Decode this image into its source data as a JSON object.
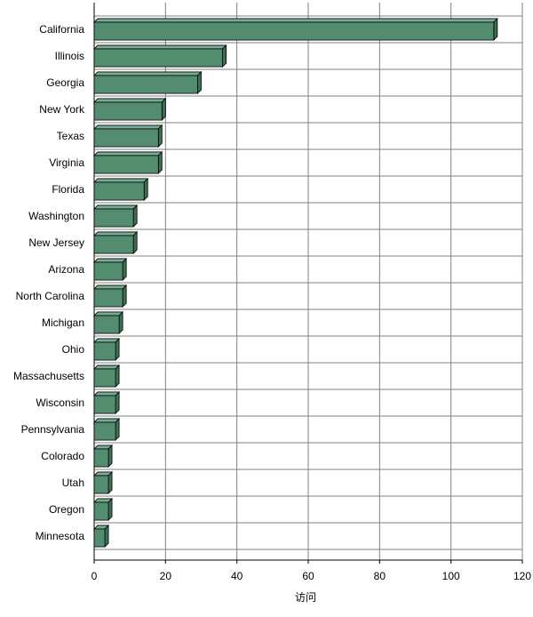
{
  "chart_data": {
    "type": "bar",
    "orientation": "horizontal",
    "style": "3d",
    "categories": [
      "California",
      "Illinois",
      "Georgia",
      "New York",
      "Texas",
      "Virginia",
      "Florida",
      "Washington",
      "New Jersey",
      "Arizona",
      "North Carolina",
      "Michigan",
      "Ohio",
      "Massachusetts",
      "Wisconsin",
      "Pennsylvania",
      "Colorado",
      "Utah",
      "Oregon",
      "Minnesota"
    ],
    "values": [
      112,
      36,
      29,
      19,
      18,
      18,
      14,
      11,
      11,
      8,
      8,
      7,
      6,
      6,
      6,
      6,
      4,
      4,
      4,
      3
    ],
    "xlabel": "访问",
    "xlim": [
      0,
      120
    ],
    "xticks": [
      0,
      20,
      40,
      60,
      80,
      100,
      120
    ],
    "grid": true,
    "colors": {
      "bar_front": "#548c70",
      "bar_top": "#76ac92",
      "bar_side": "#3d6e56",
      "grid": "#808080",
      "outline": "#000000"
    }
  }
}
